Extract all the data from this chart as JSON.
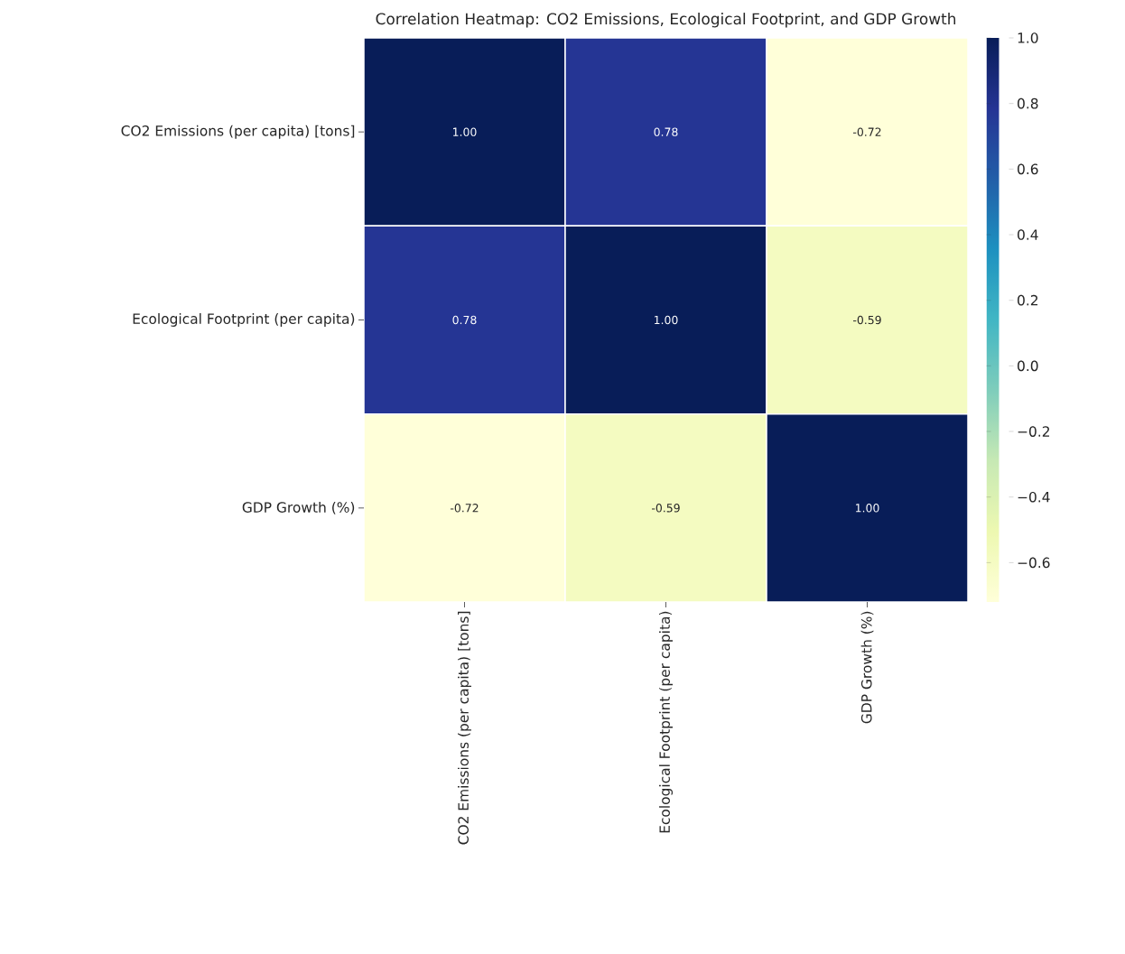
{
  "chart_data": {
    "type": "heatmap",
    "title": "Correlation Heatmap: CO2 Emissions, Ecological Footprint, and GDP Growth",
    "categories": [
      "CO2 Emissions (per capita) [tons]",
      "Ecological Footprint (per capita)",
      "GDP Growth (%)"
    ],
    "y_categories": [
      "CO2 Emissions (per capita) [tons]",
      "Ecological Footprint (per capita)",
      "GDP Growth (%)"
    ],
    "cells": [
      [
        1.0,
        0.78,
        -0.72
      ],
      [
        0.78,
        1.0,
        -0.59
      ],
      [
        -0.72,
        -0.59,
        1.0
      ]
    ],
    "cell_labels": [
      [
        "1.00",
        "0.78",
        "-0.72"
      ],
      [
        "0.78",
        "1.00",
        "-0.59"
      ],
      [
        "-0.72",
        "-0.59",
        "1.00"
      ]
    ],
    "clim": [
      -0.72,
      1.0
    ],
    "cticks": [
      {
        "value": -0.6,
        "label": "−0.6"
      },
      {
        "value": -0.4,
        "label": "−0.4"
      },
      {
        "value": -0.2,
        "label": "−0.2"
      },
      {
        "value": 0.0,
        "label": "0.0"
      },
      {
        "value": 0.2,
        "label": "0.2"
      },
      {
        "value": 0.4,
        "label": "0.4"
      },
      {
        "value": 0.6,
        "label": "0.6"
      },
      {
        "value": 0.8,
        "label": "0.8"
      },
      {
        "value": 1.0,
        "label": "1.0"
      }
    ]
  }
}
